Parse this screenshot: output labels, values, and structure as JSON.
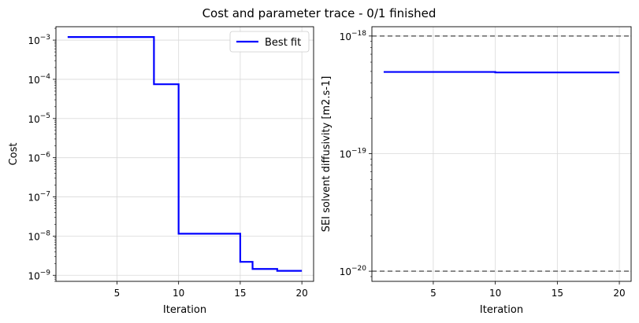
{
  "figure": {
    "title": "Cost and parameter trace - 0/1 finished",
    "colors": {
      "series": "#0000ff",
      "grid": "#d9d9d9",
      "bound": "#707070",
      "axes": "#000000"
    }
  },
  "chart_data": [
    {
      "type": "line",
      "step": true,
      "xlabel": "Iteration",
      "ylabel": "Cost",
      "yscale": "log",
      "xlim": [
        0.05,
        20.95
      ],
      "ylim": [
        7e-10,
        0.0022
      ],
      "xticks": [
        5,
        10,
        15,
        20
      ],
      "yticks": [
        1e-09,
        1e-08,
        1e-07,
        1e-06,
        1e-05,
        0.0001,
        0.001
      ],
      "ytick_labels": [
        {
          "base": "10",
          "exp": "−9"
        },
        {
          "base": "10",
          "exp": "−8"
        },
        {
          "base": "10",
          "exp": "−7"
        },
        {
          "base": "10",
          "exp": "−6"
        },
        {
          "base": "10",
          "exp": "−5"
        },
        {
          "base": "10",
          "exp": "−4"
        },
        {
          "base": "10",
          "exp": "−3"
        }
      ],
      "grid": true,
      "legend": {
        "placement": "top-right",
        "entries": [
          "Best fit"
        ]
      },
      "series": [
        {
          "name": "Best fit",
          "color": "#0000ff",
          "x": [
            1,
            8,
            8,
            10,
            10,
            15,
            15,
            16,
            16,
            18,
            18,
            20
          ],
          "y": [
            0.0012,
            0.0012,
            7.5e-05,
            7.5e-05,
            1.15e-08,
            1.15e-08,
            2.2e-09,
            2.2e-09,
            1.45e-09,
            1.45e-09,
            1.3e-09,
            1.3e-09
          ]
        }
      ]
    },
    {
      "type": "line",
      "step": true,
      "xlabel": "Iteration",
      "ylabel": "SEI solvent diffusivity [m2.s-1]",
      "yscale": "log",
      "xlim": [
        0.05,
        20.95
      ],
      "ylim": [
        8.2e-21,
        1.2e-18
      ],
      "xticks": [
        5,
        10,
        15,
        20
      ],
      "yticks": [
        1e-20,
        1e-19,
        1e-18
      ],
      "ytick_labels": [
        {
          "base": "10",
          "exp": "−20"
        },
        {
          "base": "10",
          "exp": "−19"
        },
        {
          "base": "10",
          "exp": "−18"
        }
      ],
      "grid": true,
      "series": [
        {
          "color": "#0000ff",
          "x": [
            1,
            10,
            10,
            20
          ],
          "y": [
            4.95e-19,
            4.95e-19,
            4.9e-19,
            4.9e-19
          ]
        }
      ],
      "bounds": {
        "style": "dashed",
        "color": "#707070",
        "values": [
          1e-18,
          1e-20
        ]
      }
    }
  ]
}
